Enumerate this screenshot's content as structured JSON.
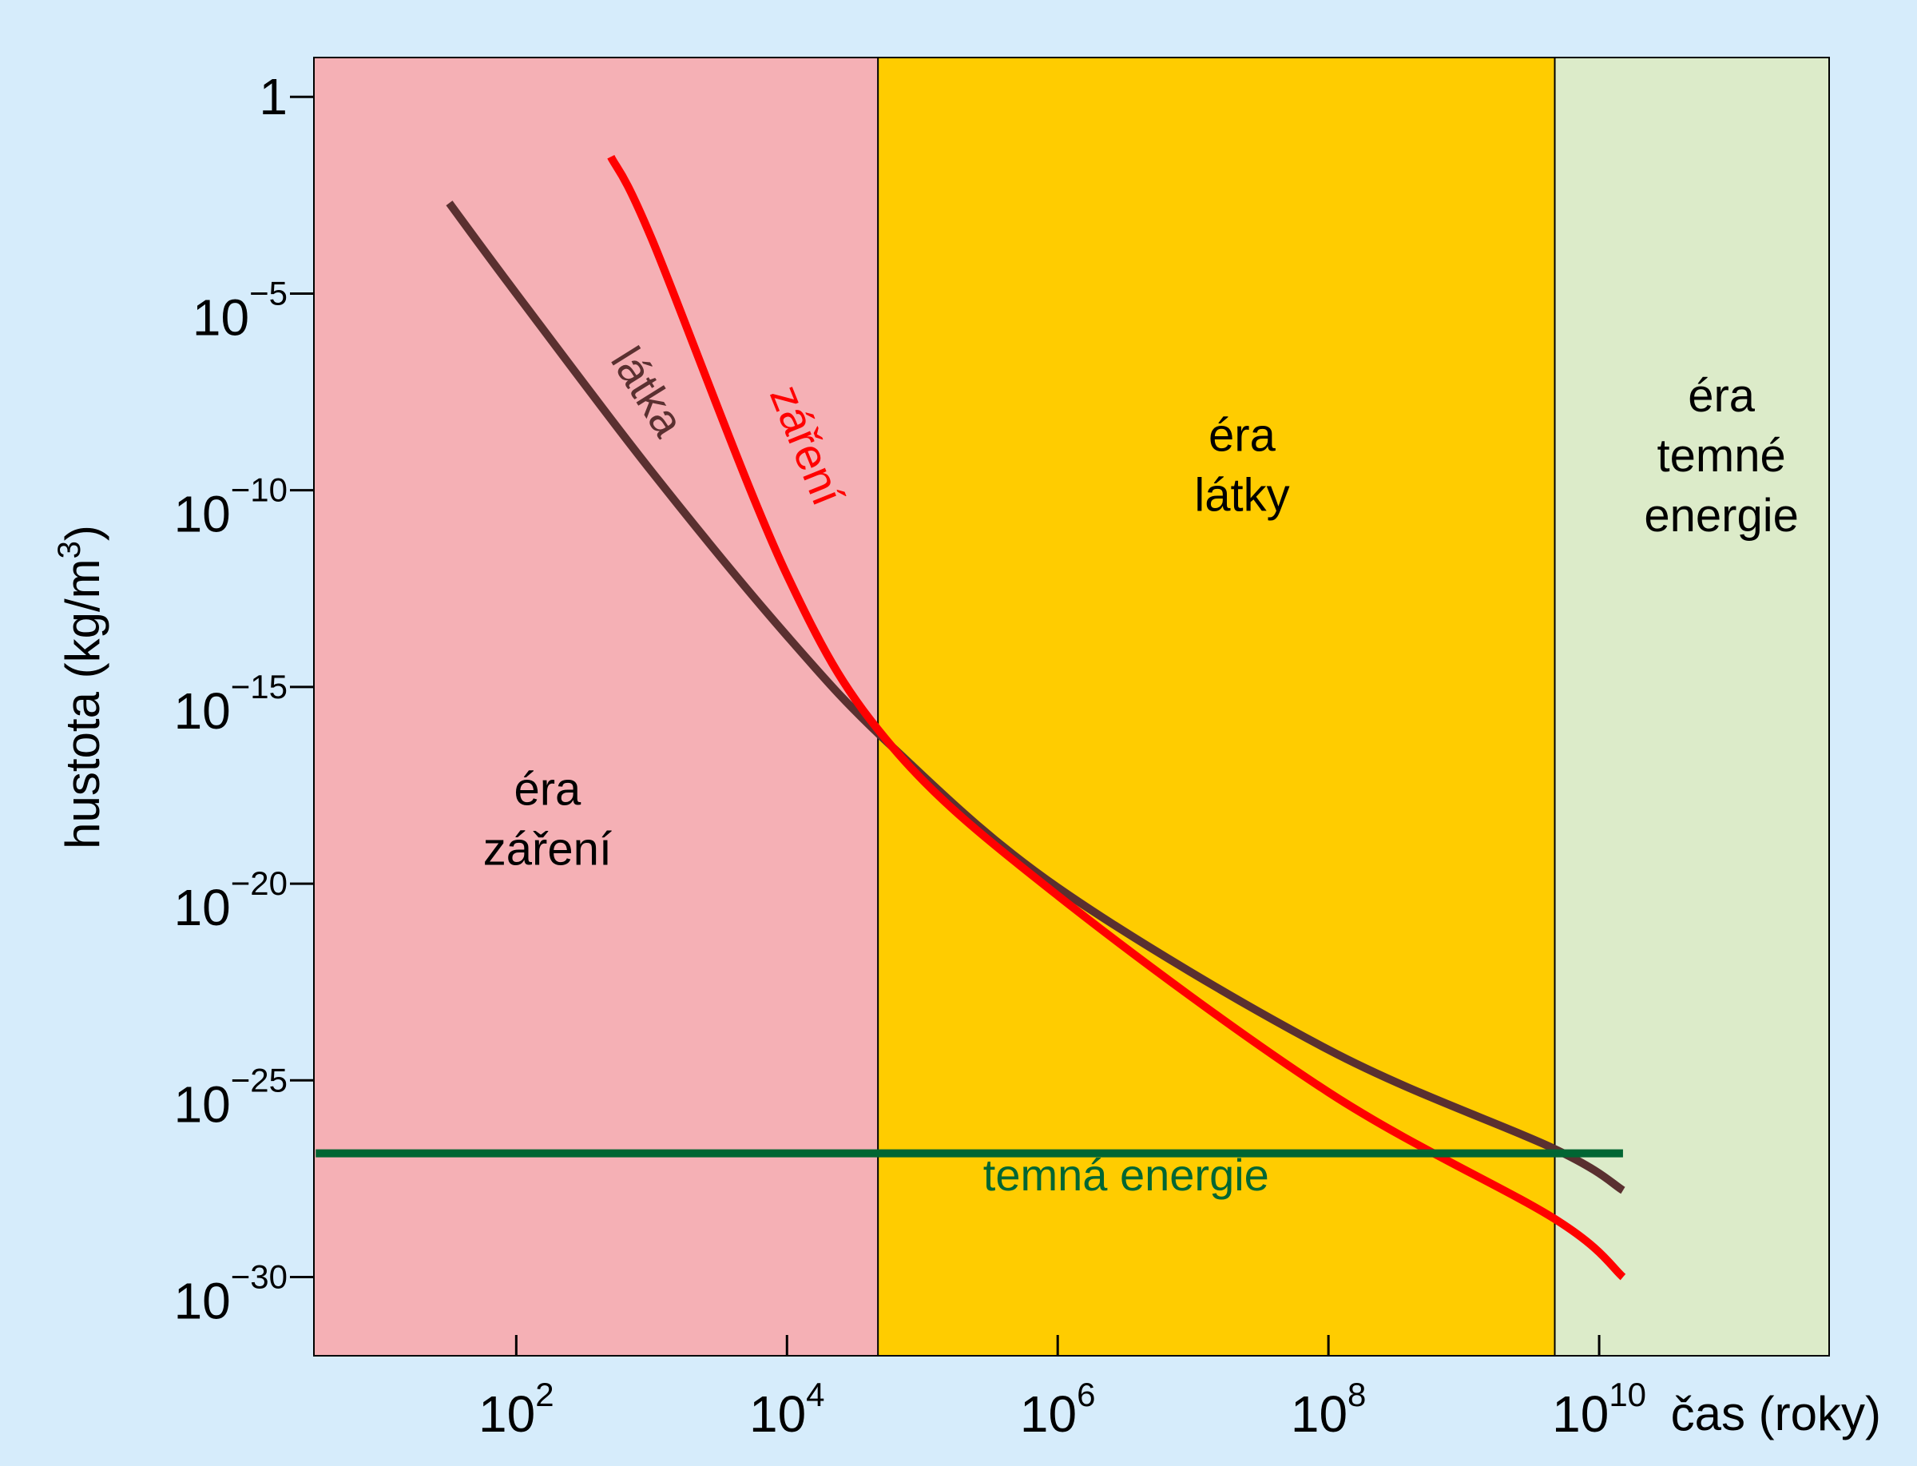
{
  "chart_data": {
    "type": "line",
    "xlabel": "čas (roky)",
    "ylabel_main": "hustota (kg/m",
    "ylabel_sup": "3",
    "ylabel_end": ")",
    "x_scale": "log",
    "y_scale": "log",
    "xlim": [
      3.2,
      500000000000.0
    ],
    "ylim": [
      1e-32,
      10.0
    ],
    "x_ticks": [
      {
        "value": 100.0,
        "base": "10",
        "exp": "2"
      },
      {
        "value": 10000.0,
        "base": "10",
        "exp": "4"
      },
      {
        "value": 1000000.0,
        "base": "10",
        "exp": "6"
      },
      {
        "value": 100000000.0,
        "base": "10",
        "exp": "8"
      },
      {
        "value": 10000000000.0,
        "base": "10",
        "exp": "10"
      }
    ],
    "y_ticks": [
      {
        "value": 1,
        "base": "1",
        "exp": ""
      },
      {
        "value": 1e-05,
        "base": "10",
        "exp": "−5"
      },
      {
        "value": 1e-10,
        "base": "10",
        "exp": "−10"
      },
      {
        "value": 1e-15,
        "base": "10",
        "exp": "−15"
      },
      {
        "value": 1e-20,
        "base": "10",
        "exp": "−20"
      },
      {
        "value": 1e-25,
        "base": "10",
        "exp": "−25"
      },
      {
        "value": 1e-30,
        "base": "10",
        "exp": "−30"
      }
    ],
    "eras": [
      {
        "name": "era-radiation",
        "from": 3.2,
        "to": 47000.0,
        "color": "#f5b0b5",
        "lines": [
          "éra",
          "záření"
        ],
        "label_x": 170.0,
        "label_y": 1e-18
      },
      {
        "name": "era-matter",
        "from": 47000.0,
        "to": 4700000000.0,
        "color": "#ffcc00",
        "lines": [
          "éra",
          "látky"
        ],
        "label_x": 23000000.0,
        "label_y": 1e-09
      },
      {
        "name": "era-dark-energy",
        "from": 4700000000.0,
        "to": 500000000000.0,
        "color": "#dcebc9",
        "lines": [
          "éra",
          "temné",
          "energie"
        ],
        "label_x": 80000000000.0,
        "label_y": 1e-08
      }
    ],
    "series": [
      {
        "name": "látka",
        "color": "#5a3030",
        "x": [
          32.0,
          100.0,
          1000.0,
          10000.0,
          60000.0,
          1000000.0,
          100000000.0,
          4700000000.0,
          15000000000.0
        ],
        "y": [
          0.002,
          1e-05,
          3e-10,
          2e-14,
          3e-17,
          8e-21,
          6e-25,
          1.8e-27,
          1.6e-28
        ]
      },
      {
        "name": "záření",
        "color": "#ff0000",
        "x": [
          500.0,
          1000.0,
          10000.0,
          60000.0,
          1000000.0,
          100000000.0,
          4700000000.0,
          15000000000.0
        ],
        "y": [
          0.03,
          0.00025,
          7e-13,
          3e-17,
          5e-21,
          5e-26,
          3e-29,
          1e-30
        ]
      },
      {
        "name": "temná energie",
        "color": "#006633",
        "x": [
          3.3,
          15000000000.0
        ],
        "y": [
          1.4e-27,
          1.4e-27
        ]
      }
    ],
    "labels": [
      {
        "series": "látka",
        "text": "látka",
        "x": 750.0,
        "y": 2e-08,
        "rotate": 58,
        "color": "#5a3030"
      },
      {
        "series": "záření",
        "text": "záření",
        "x": 11000.0,
        "y": 1e-09,
        "rotate": 68,
        "color": "#ff0000"
      },
      {
        "series": "temná energie",
        "text": "temná energie",
        "x": 3200000.0,
        "y": 1.6e-28,
        "rotate": 0,
        "color": "#006633"
      }
    ]
  }
}
